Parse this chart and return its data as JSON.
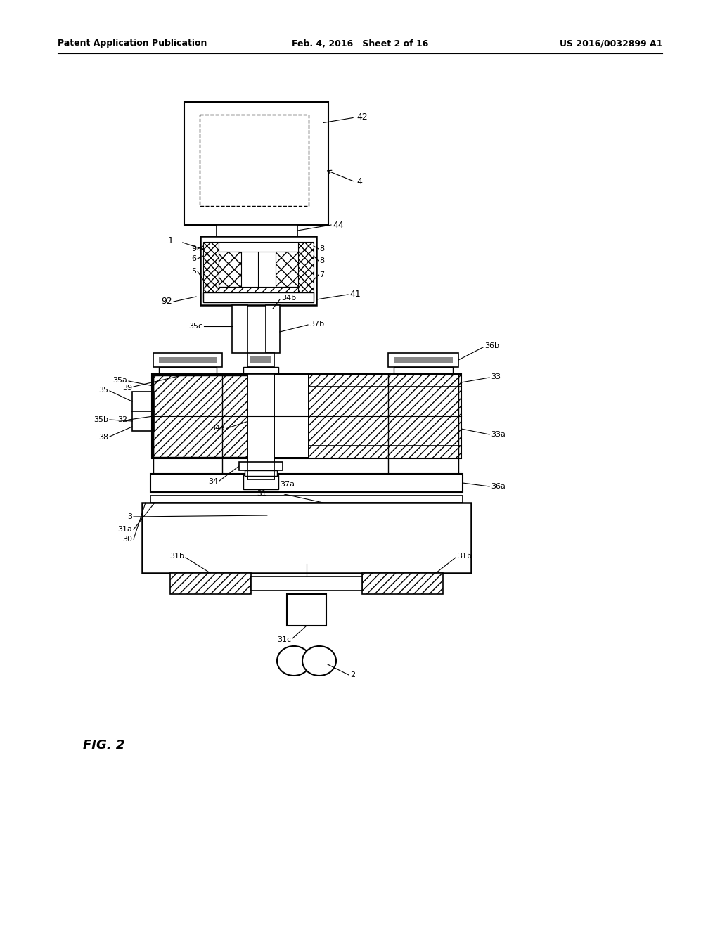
{
  "title_left": "Patent Application Publication",
  "title_mid": "Feb. 4, 2016   Sheet 2 of 16",
  "title_right": "US 2016/0032899 A1",
  "fig_label": "FIG. 2",
  "bg_color": "#ffffff",
  "line_color": "#000000"
}
